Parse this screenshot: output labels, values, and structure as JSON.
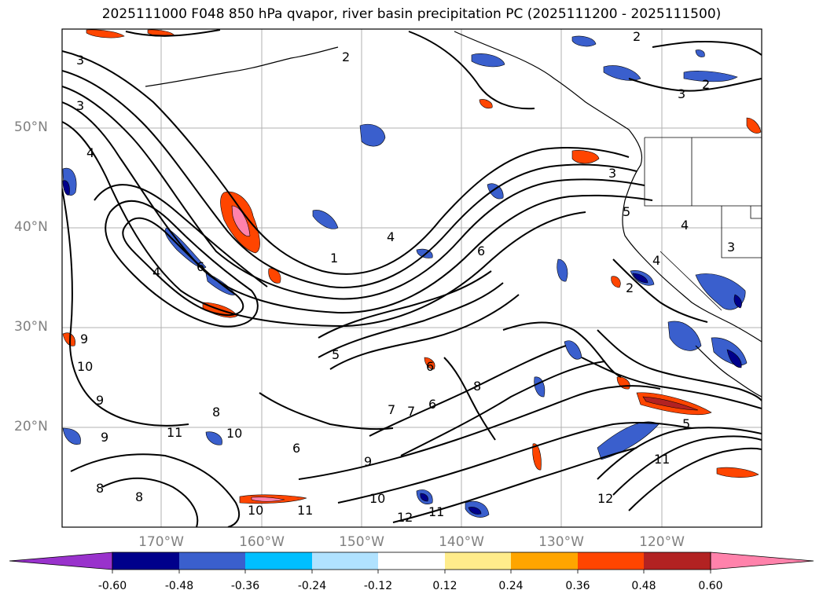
{
  "title": "2025111000 F048 850 hPa qvapor, river basin precipitation PC (2025111200 - 2025111500)",
  "lat_labels": [
    "50°N",
    "40°N",
    "30°N",
    "20°N"
  ],
  "lon_labels": [
    "170°W",
    "160°W",
    "150°W",
    "140°W",
    "130°W",
    "120°W"
  ],
  "colorbar": {
    "ticks": [
      "-0.60",
      "-0.48",
      "-0.36",
      "-0.24",
      "-0.12",
      "0.12",
      "0.24",
      "0.36",
      "0.48",
      "0.60"
    ],
    "colors": [
      "#9932cc",
      "#00008b",
      "#3a5fcd",
      "#00bfff",
      "#b0e2ff",
      "#ffffff",
      "#ffec8b",
      "#ffa500",
      "#ff4500",
      "#b22222",
      "#ff82ab"
    ]
  },
  "contour_labels": {
    "a": "3",
    "b": "3",
    "c": "4",
    "d": "4",
    "e": "4",
    "f": "6",
    "g": "6",
    "h": "1",
    "i": "5",
    "j": "2",
    "k": "2",
    "l": "2",
    "m": "3",
    "n": "4",
    "o": "3",
    "p": "3",
    "q": "9",
    "r": "10",
    "s": "9",
    "t": "11",
    "u": "10",
    "v": "8",
    "w": "6",
    "x": "7",
    "y": "6",
    "z": "8",
    "aa": "9",
    "ab": "10",
    "ac": "12",
    "ad": "11",
    "ae": "12",
    "af": "11",
    "ag": "10",
    "ah": "11",
    "ai": "8",
    "aj": "8",
    "ak": "5",
    "al": "9",
    "am": "7",
    "an": "6",
    "ao": "2",
    "ap": "5",
    "aq": "4"
  }
}
